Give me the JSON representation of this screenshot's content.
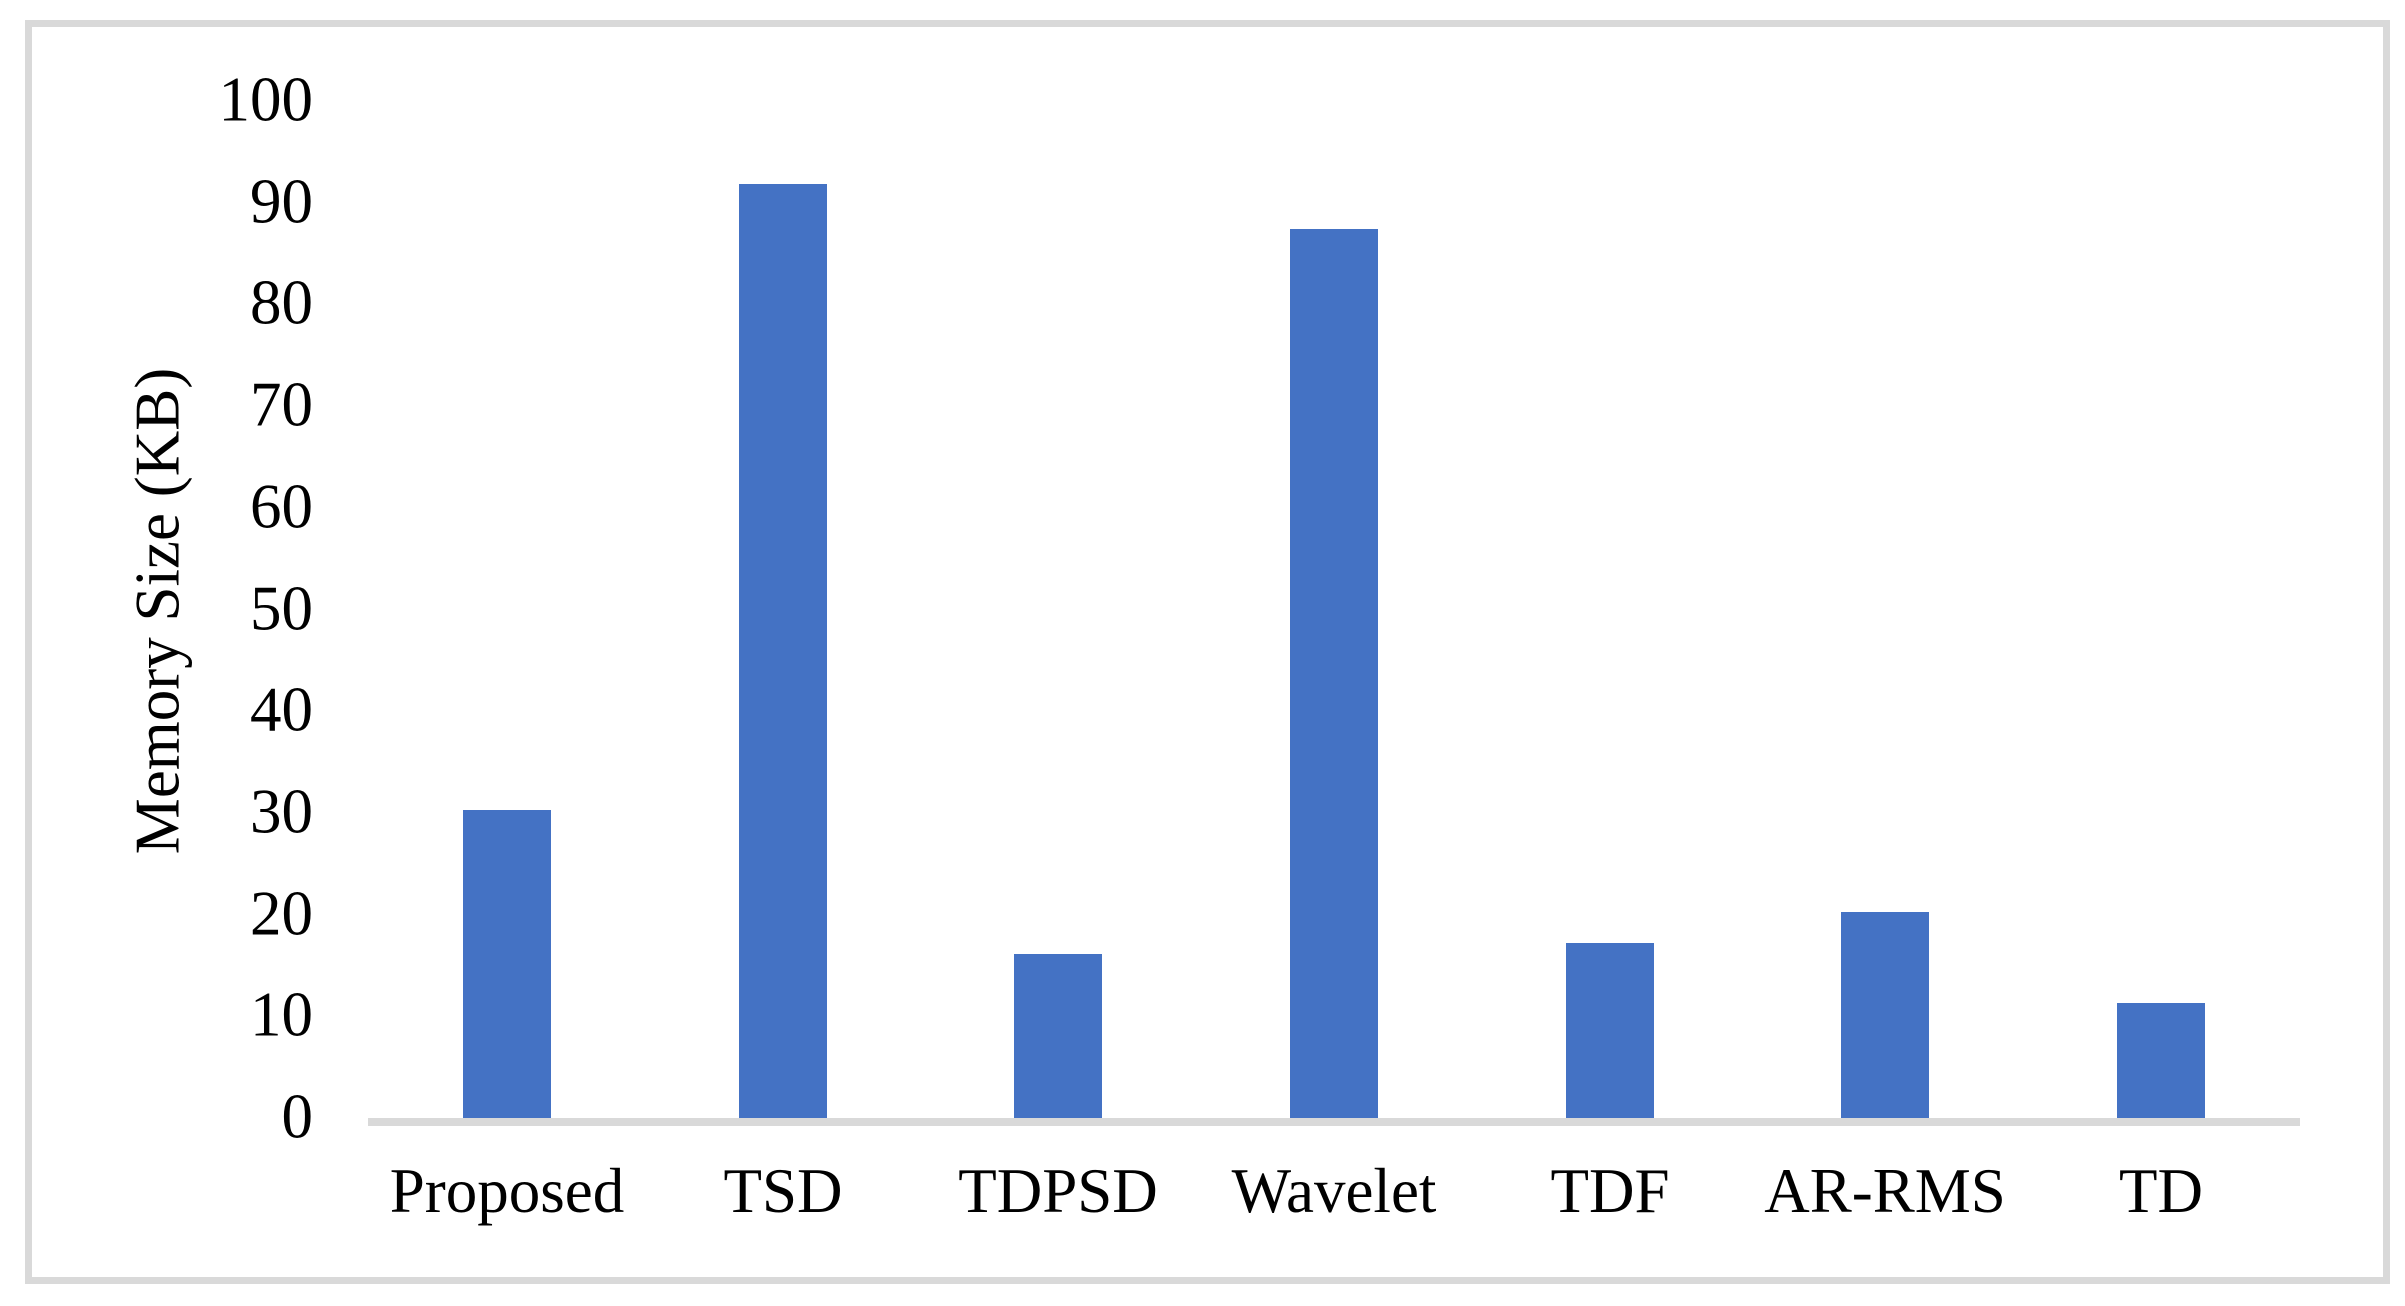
{
  "chart_data": {
    "type": "bar",
    "title": "",
    "categories": [
      "Proposed",
      "TSD",
      "TDPSD",
      "Wavelet",
      "TDF",
      "AR-RMS",
      "TD"
    ],
    "values": [
      30.5,
      92,
      16.3,
      87.6,
      17.4,
      20.5,
      11.5
    ],
    "xlabel": "",
    "ylabel": "Memory Size (KB)",
    "ylim": [
      0,
      100
    ],
    "yticks": [
      0,
      10,
      20,
      30,
      40,
      50,
      60,
      70,
      80,
      90,
      100
    ],
    "grid": false,
    "legend": false,
    "colors": {
      "bar": "#4472C4",
      "axis_line": "#D9D9D9",
      "frame_border": "#D9D9D9",
      "text": "#000000",
      "background": "#FFFFFF"
    }
  }
}
